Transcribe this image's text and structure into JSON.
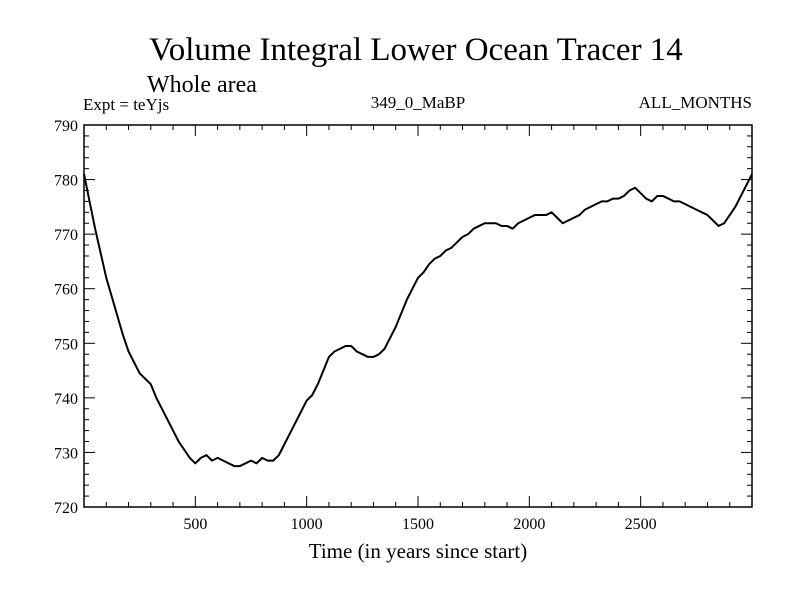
{
  "chart_data": {
    "type": "line",
    "title": "Volume Integral Lower Ocean Tracer 14",
    "subtitle": "Whole area",
    "left_label": "Expt = teYjs",
    "center_label": "349_0_MaBP",
    "right_label": "ALL_MONTHS",
    "xlabel": "Time (in years since start)",
    "ylabel": "",
    "xlim": [
      0,
      3000
    ],
    "ylim": [
      720,
      790
    ],
    "x_ticks": [
      500,
      1000,
      1500,
      2000,
      2500
    ],
    "x_tick_labels": [
      "500",
      "1000",
      "1500",
      "2000",
      "2500"
    ],
    "y_ticks": [
      720,
      730,
      740,
      750,
      760,
      770,
      780,
      790
    ],
    "y_tick_labels": [
      "720",
      "730",
      "740",
      "750",
      "760",
      "770",
      "780",
      "790"
    ],
    "grid": false,
    "series": [
      {
        "name": "Lower Ocean Tracer 14",
        "color": "#000000",
        "x": [
          0,
          25,
          50,
          75,
          100,
          125,
          150,
          175,
          200,
          225,
          250,
          275,
          300,
          325,
          350,
          375,
          400,
          425,
          450,
          475,
          500,
          525,
          550,
          575,
          600,
          625,
          650,
          675,
          700,
          725,
          750,
          775,
          800,
          825,
          850,
          875,
          900,
          925,
          950,
          975,
          1000,
          1025,
          1050,
          1075,
          1100,
          1125,
          1150,
          1175,
          1200,
          1225,
          1250,
          1275,
          1300,
          1325,
          1350,
          1375,
          1400,
          1425,
          1450,
          1475,
          1500,
          1525,
          1550,
          1575,
          1600,
          1625,
          1650,
          1675,
          1700,
          1725,
          1750,
          1775,
          1800,
          1825,
          1850,
          1875,
          1900,
          1925,
          1950,
          1975,
          2000,
          2025,
          2050,
          2075,
          2100,
          2125,
          2150,
          2175,
          2200,
          2225,
          2250,
          2275,
          2300,
          2325,
          2350,
          2375,
          2400,
          2425,
          2450,
          2475,
          2500,
          2525,
          2550,
          2575,
          2600,
          2625,
          2650,
          2675,
          2700,
          2725,
          2750,
          2775,
          2800,
          2825,
          2850,
          2875,
          2900,
          2925,
          2950,
          2975,
          3000
        ],
        "values": [
          781.0,
          776.0,
          771.0,
          766.5,
          762.0,
          758.5,
          755.0,
          751.5,
          748.5,
          746.5,
          744.5,
          743.5,
          742.5,
          740.0,
          738.0,
          736.0,
          734.0,
          732.0,
          730.5,
          729.0,
          728.0,
          729.0,
          729.5,
          728.5,
          729.0,
          728.5,
          728.0,
          727.5,
          727.5,
          728.0,
          728.5,
          728.0,
          729.0,
          728.5,
          728.5,
          729.5,
          731.5,
          733.5,
          735.5,
          737.5,
          739.5,
          740.5,
          742.5,
          745.0,
          747.5,
          748.5,
          749.0,
          749.5,
          749.5,
          748.5,
          748.0,
          747.5,
          747.5,
          748.0,
          749.0,
          751.0,
          753.0,
          755.5,
          758.0,
          760.0,
          762.0,
          763.0,
          764.5,
          765.5,
          766.0,
          767.0,
          767.5,
          768.5,
          769.5,
          770.0,
          771.0,
          771.5,
          772.0,
          772.0,
          772.0,
          771.5,
          771.5,
          771.0,
          772.0,
          772.5,
          773.0,
          773.5,
          773.5,
          773.5,
          774.0,
          773.0,
          772.0,
          772.5,
          773.0,
          773.5,
          774.5,
          775.0,
          775.5,
          776.0,
          776.0,
          776.5,
          776.5,
          777.0,
          778.0,
          778.5,
          777.5,
          776.5,
          776.0,
          777.0,
          777.0,
          776.5,
          776.0,
          776.0,
          775.5,
          775.0,
          774.5,
          774.0,
          773.5,
          772.5,
          771.5,
          772.0,
          773.5,
          775.0,
          777.0,
          779.0,
          781.0
        ]
      }
    ]
  }
}
